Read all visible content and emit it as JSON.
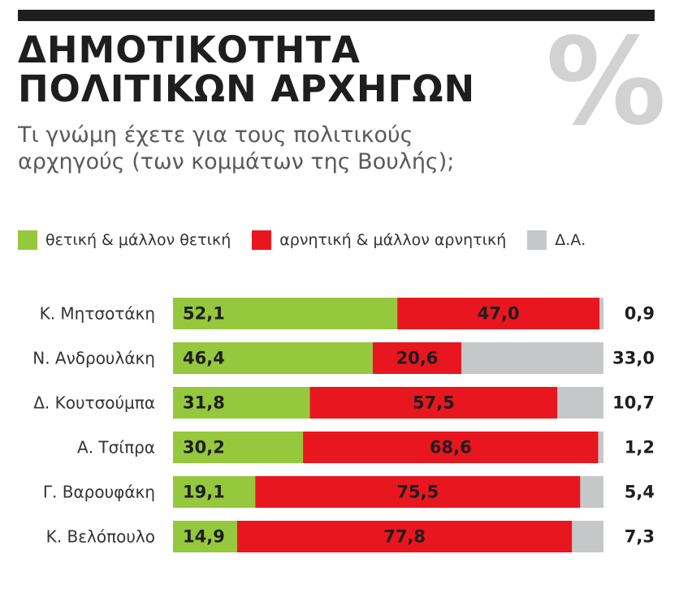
{
  "header": {
    "title_line1": "ΔΗΜΟΤΙΚΟΤΗΤΑ",
    "title_line2": "ΠΟΛΙΤΙΚΩΝ ΑΡΧΗΓΩΝ",
    "percent_symbol": "%",
    "subtitle_line1": "Τι γνώμη έχετε για τους πολιτικούς",
    "subtitle_line2": "αρχηγούς (των κομμάτων της Βουλής);"
  },
  "legend": [
    {
      "label": "θετική & μάλλον θετική",
      "color": "#95c83d"
    },
    {
      "label": "αρνητική & μάλλον αρνητική",
      "color": "#e8161f"
    },
    {
      "label": "Δ.Α.",
      "color": "#c6c7c9"
    }
  ],
  "chart_data": {
    "type": "bar",
    "stacked": true,
    "orientation": "horizontal",
    "categories": [
      "Κ. Μητσοτάκη",
      "Ν. Ανδρουλάκη",
      "Δ. Κουτσούμπα",
      "Α. Τσίπρα",
      "Γ. Βαρουφάκη",
      "Κ. Βελόπουλο"
    ],
    "series": [
      {
        "name": "θετική & μάλλον θετική",
        "color": "#95c83d",
        "values": [
          "52,1",
          "46,4",
          "31,8",
          "30,2",
          "19,1",
          "14,9"
        ]
      },
      {
        "name": "αρνητική & μάλλον αρνητική",
        "color": "#e8161f",
        "values": [
          "47,0",
          "20,6",
          "57,5",
          "68,6",
          "75,5",
          "77,8"
        ]
      },
      {
        "name": "Δ.Α.",
        "color": "#c6c7c9",
        "values": [
          "0,9",
          "33,0",
          "10,7",
          "1,2",
          "5,4",
          "7,3"
        ]
      }
    ],
    "xlim": [
      0,
      100
    ],
    "grid": false
  }
}
